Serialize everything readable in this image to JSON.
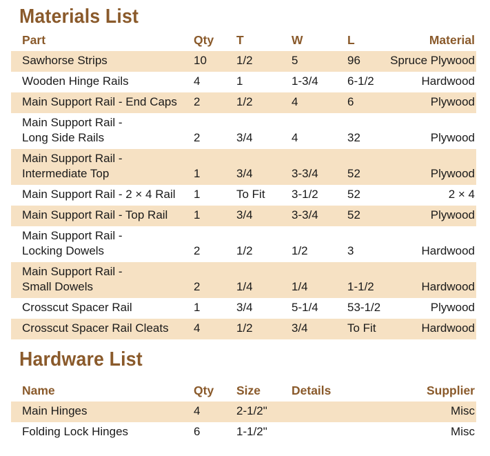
{
  "materials": {
    "title": "Materials List",
    "headers": {
      "part": "Part",
      "qty": "Qty",
      "t": "T",
      "w": "W",
      "l": "L",
      "material": "Material"
    },
    "rows": [
      {
        "part": [
          "Sawhorse Strips"
        ],
        "qty": "10",
        "t": "1/2",
        "w": "5",
        "l": "96",
        "material": "Spruce Plywood"
      },
      {
        "part": [
          "Wooden Hinge Rails"
        ],
        "qty": "4",
        "t": "1",
        "w": "1-3/4",
        "l": "6-1/2",
        "material": "Hardwood"
      },
      {
        "part": [
          "Main Support Rail - End Caps"
        ],
        "qty": "2",
        "t": "1/2",
        "w": "4",
        "l": "6",
        "material": "Plywood"
      },
      {
        "part": [
          "Main Support Rail -",
          "Long Side Rails"
        ],
        "qty": "2",
        "t": "3/4",
        "w": "4",
        "l": "32",
        "material": "Plywood"
      },
      {
        "part": [
          "Main Support Rail -",
          "Intermediate Top"
        ],
        "qty": "1",
        "t": "3/4",
        "w": "3-3/4",
        "l": "52",
        "material": "Plywood"
      },
      {
        "part": [
          "Main Support Rail - 2 × 4 Rail"
        ],
        "qty": "1",
        "t": "To Fit",
        "w": "3-1/2",
        "l": "52",
        "material": "2 × 4"
      },
      {
        "part": [
          "Main Support Rail - Top Rail"
        ],
        "qty": "1",
        "t": "3/4",
        "w": "3-3/4",
        "l": "52",
        "material": "Plywood"
      },
      {
        "part": [
          "Main Support Rail -",
          "Locking Dowels"
        ],
        "qty": "2",
        "t": "1/2",
        "w": "1/2",
        "l": "3",
        "material": "Hardwood"
      },
      {
        "part": [
          "Main Support Rail -",
          "Small Dowels"
        ],
        "qty": "2",
        "t": "1/4",
        "w": "1/4",
        "l": "1-1/2",
        "material": "Hardwood"
      },
      {
        "part": [
          "Crosscut Spacer Rail"
        ],
        "qty": "1",
        "t": "3/4",
        "w": "5-1/4",
        "l": "53-1/2",
        "material": "Plywood"
      },
      {
        "part": [
          "Crosscut Spacer Rail Cleats"
        ],
        "qty": "4",
        "t": "1/2",
        "w": "3/4",
        "l": "To Fit",
        "material": "Hardwood"
      }
    ]
  },
  "hardware": {
    "title": "Hardware List",
    "headers": {
      "name": "Name",
      "qty": "Qty",
      "size": "Size",
      "details": "Details",
      "supplier": "Supplier"
    },
    "rows": [
      {
        "name": "Main Hinges",
        "qty": "4",
        "size": "2-1/2\"",
        "details": "",
        "supplier": "Misc"
      },
      {
        "name": "Folding Lock Hinges",
        "qty": "6",
        "size": "1-1/2\"",
        "details": "",
        "supplier": "Misc"
      }
    ]
  },
  "colors": {
    "heading": "#8a5a2b",
    "row_shade": "#f6e1c3",
    "text": "#1a1a1a"
  }
}
